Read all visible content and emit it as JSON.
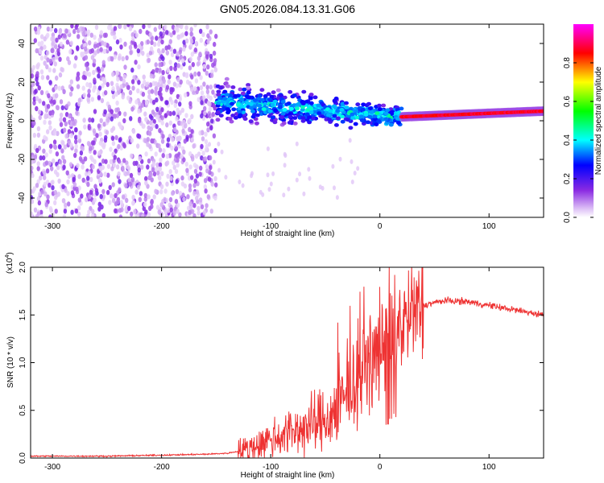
{
  "page_title": "GN05.2026.084.13.31.G06",
  "chart_data": [
    {
      "type": "heatmap",
      "title": "GN05.2026.084.13.31.G06",
      "xlabel": "Height of straight line (km)",
      "ylabel": "Frequency (Hz)",
      "xlim": [
        -320,
        150
      ],
      "ylim": [
        -50,
        50
      ],
      "x_ticks": [
        -300,
        -200,
        -100,
        0,
        100
      ],
      "x_tick_labels": [
        "-300",
        "-200",
        "-100",
        "0",
        "100"
      ],
      "y_ticks": [
        -40,
        -20,
        0,
        20,
        40
      ],
      "y_tick_labels": [
        "-40",
        "-20",
        "0",
        "20",
        "40"
      ],
      "colorbar": {
        "label": "Normalized spectral amplitude",
        "range": [
          0,
          1
        ],
        "ticks": [
          0.0,
          0.2,
          0.4,
          0.6,
          0.8
        ],
        "tick_labels": [
          "0.0",
          "0.2",
          "0.4",
          "0.6",
          "0.8"
        ],
        "colormap": [
          "#ffffff",
          "#d9b8f5",
          "#8a2be2",
          "#0000ff",
          "#00ffff",
          "#00ff00",
          "#ffff00",
          "#ff0000",
          "#ff00ff"
        ]
      },
      "regions": [
        {
          "name": "noise",
          "x_range": [
            -320,
            -150
          ],
          "freq_range": [
            -50,
            50
          ],
          "amplitude": 0.05
        },
        {
          "name": "turbulent",
          "x_range": [
            -150,
            20
          ],
          "center_freq_start": 10,
          "center_freq_end": 2,
          "spread": 8,
          "amplitude": 0.35
        },
        {
          "name": "signal",
          "x_range": [
            20,
            150
          ],
          "center_freq_start": 2,
          "center_freq_end": 5,
          "spread": 2,
          "amplitude": 0.9
        }
      ]
    },
    {
      "type": "line",
      "xlabel": "Height of straight line (km)",
      "ylabel": "SNR (10 * v/v)",
      "y_scale_label": "(x10",
      "y_scale_exponent": "4",
      "y_scale_suffix": ")",
      "xlim": [
        -320,
        150
      ],
      "ylim": [
        0,
        2.0
      ],
      "x_ticks": [
        -300,
        -200,
        -100,
        0,
        100
      ],
      "x_tick_labels": [
        "-300",
        "-200",
        "-100",
        "0",
        "100"
      ],
      "y_ticks": [
        0,
        0.5,
        1.0,
        1.5,
        2.0
      ],
      "y_tick_labels": [
        "0.0",
        "0.5",
        "1.0",
        "1.5",
        "2.0"
      ],
      "color": "#ee3333",
      "series": [
        {
          "name": "SNR",
          "x": [
            -320,
            -250,
            -200,
            -160,
            -140,
            -130,
            -120,
            -110,
            -100,
            -90,
            -80,
            -70,
            -60,
            -50,
            -40,
            -30,
            -25,
            -20,
            -15,
            -10,
            -5,
            0,
            5,
            10,
            15,
            20,
            30,
            40,
            50,
            60,
            80,
            100,
            120,
            150
          ],
          "y": [
            0.02,
            0.02,
            0.03,
            0.04,
            0.05,
            0.07,
            0.1,
            0.15,
            0.2,
            0.24,
            0.28,
            0.32,
            0.35,
            0.4,
            0.5,
            0.65,
            0.75,
            0.85,
            0.9,
            1.0,
            1.05,
            1.1,
            1.2,
            1.3,
            1.35,
            1.4,
            1.5,
            1.6,
            1.63,
            1.65,
            1.64,
            1.6,
            1.56,
            1.5
          ]
        }
      ]
    }
  ]
}
